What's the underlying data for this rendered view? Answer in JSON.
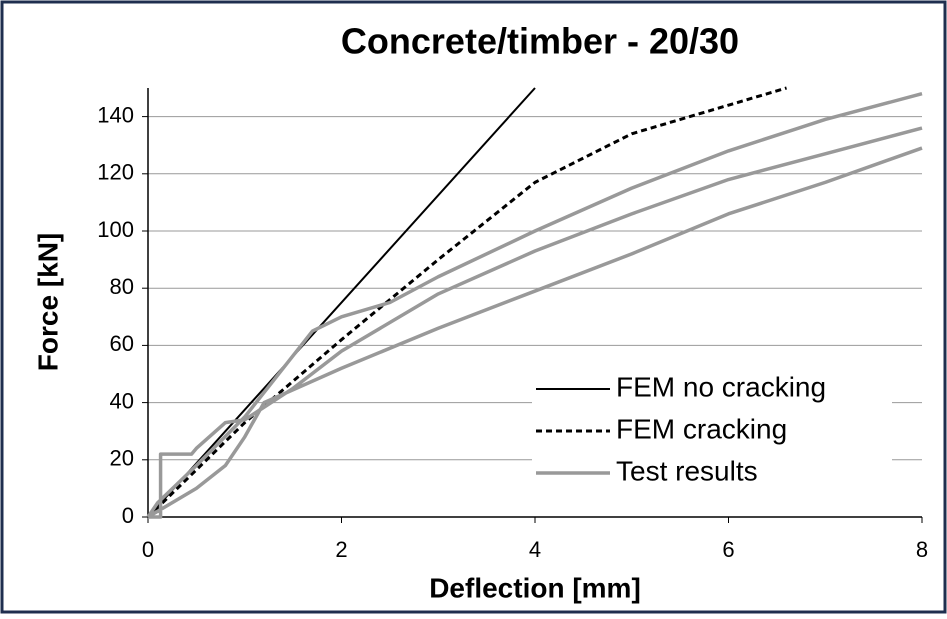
{
  "chart_data": {
    "type": "line",
    "title": "Concrete/timber - 20/30",
    "xlabel": "Deflection [mm]",
    "ylabel": "Force [kN]",
    "xlim": [
      0,
      8
    ],
    "xticks": [
      0,
      2,
      4,
      6,
      8
    ],
    "ylim": [
      0,
      150
    ],
    "yticks": [
      0,
      20,
      40,
      60,
      80,
      100,
      120,
      140
    ],
    "grid": true,
    "legend": "lower right",
    "series": [
      {
        "name": "FEM no cracking",
        "color": "#000000",
        "style": "solid",
        "x": [
          0,
          4
        ],
        "values": [
          0,
          150
        ]
      },
      {
        "name": "FEM cracking",
        "color": "#000000",
        "style": "dashed",
        "x": [
          0,
          1,
          2,
          3,
          4,
          5,
          6,
          6.6
        ],
        "values": [
          0,
          33,
          62,
          90,
          117,
          134,
          144,
          150
        ]
      },
      {
        "name": "Test results",
        "color": "#999999",
        "style": "thick",
        "x": [
          0,
          0.1,
          0.5,
          1,
          1.7,
          2,
          2.5,
          3,
          4,
          5,
          6,
          7,
          8,
          null,
          0,
          0.13,
          0.13,
          0.45,
          0.5,
          0.8,
          1,
          1.5,
          2,
          3,
          4,
          5,
          6,
          7,
          8,
          null,
          0,
          0.5,
          0.8,
          1,
          1.2,
          2,
          3,
          4,
          5,
          6,
          7,
          8
        ],
        "values": [
          0,
          5,
          18,
          35,
          65,
          70,
          75,
          84,
          100,
          115,
          128,
          139,
          148,
          null,
          0,
          0,
          22,
          22,
          24,
          33,
          34,
          45,
          58,
          78,
          93,
          106,
          118,
          127,
          136,
          null,
          0,
          10,
          18,
          28,
          40,
          52,
          66,
          79,
          92,
          106,
          117,
          129
        ]
      }
    ]
  }
}
